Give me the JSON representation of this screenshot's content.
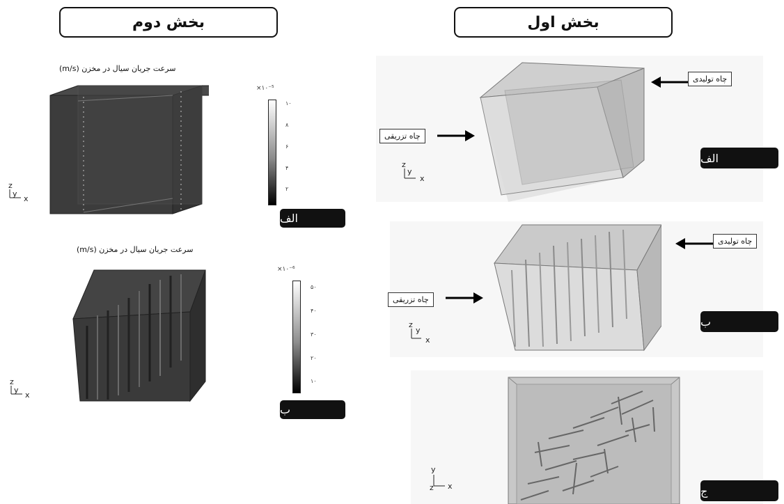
{
  "sections": {
    "left_title": "بخش دوم",
    "right_title": "بخش اول"
  },
  "section2": {
    "panel_a": {
      "title": "سرعت جریان سیال در مخزن (m/s)",
      "scale": "×۱۰⁻⁵",
      "ticks": [
        "۱۰",
        "۸",
        "۶",
        "۴",
        "۲"
      ],
      "tag": "الف"
    },
    "panel_b": {
      "title": "سرعت جریان سیال در مخزن (m/s)",
      "scale": "×۱۰⁻⁶",
      "ticks": [
        "۵۰",
        "۴۰",
        "۳۰",
        "۲۰",
        "۱۰"
      ],
      "tag": "ب"
    }
  },
  "section1": {
    "panel_a": {
      "production_well": "چاه تولیدی",
      "injection_well": "چاه تزریقی",
      "tag": "الف"
    },
    "panel_b": {
      "production_well": "چاه تولیدی",
      "injection_well": "چاه تزریقی",
      "tag": "ب"
    },
    "panel_c": {
      "tag": "ج"
    }
  },
  "axes": {
    "x": "x",
    "y": "y",
    "z": "z"
  },
  "colors": {
    "frame": "#111111",
    "tag_bg": "#111111",
    "reservoir_dark": "#3a3a3a",
    "reservoir_light": "#d6d6d6"
  }
}
